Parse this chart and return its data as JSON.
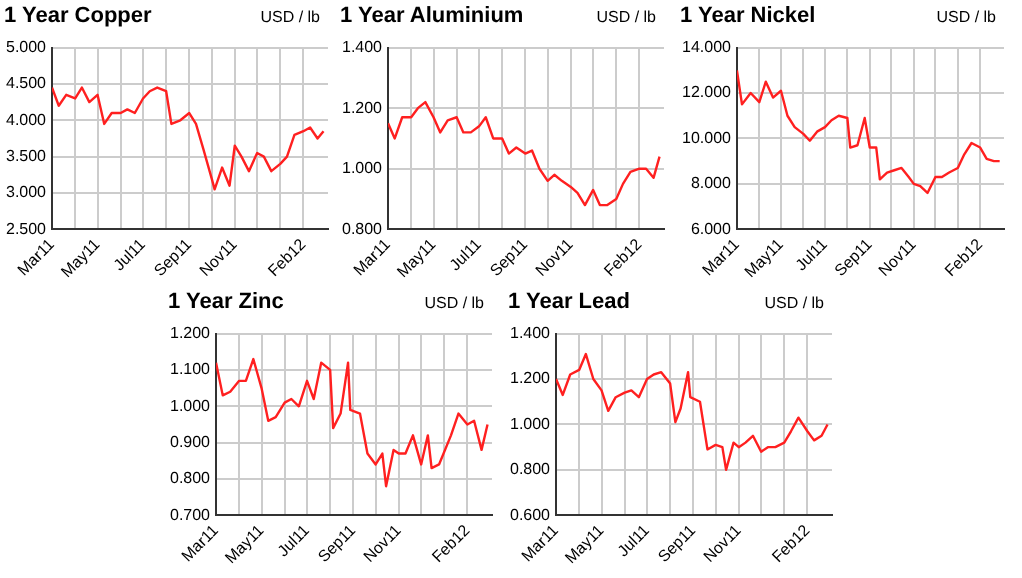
{
  "chart_data": [
    {
      "type": "line",
      "title": "1 Year Copper",
      "ylabel": "USD / lb",
      "color": "#ff2020",
      "grid": true,
      "x": [
        "2011-03-01",
        "2011-03-10",
        "2011-03-20",
        "2011-04-01",
        "2011-04-10",
        "2011-04-20",
        "2011-05-01",
        "2011-05-10",
        "2011-05-20",
        "2011-06-01",
        "2011-06-10",
        "2011-06-20",
        "2011-07-01",
        "2011-07-10",
        "2011-07-20",
        "2011-08-01",
        "2011-08-08",
        "2011-08-20",
        "2011-09-01",
        "2011-09-10",
        "2011-09-20",
        "2011-10-01",
        "2011-10-05",
        "2011-10-15",
        "2011-10-25",
        "2011-11-01",
        "2011-11-10",
        "2011-11-20",
        "2011-12-01",
        "2011-12-10",
        "2011-12-20",
        "2012-01-01",
        "2012-01-10",
        "2012-01-20",
        "2012-02-01",
        "2012-02-10",
        "2012-02-20",
        "2012-02-28"
      ],
      "values": [
        4.45,
        4.2,
        4.35,
        4.3,
        4.45,
        4.25,
        4.35,
        3.95,
        4.1,
        4.1,
        4.15,
        4.1,
        4.3,
        4.4,
        4.45,
        4.4,
        3.95,
        4.0,
        4.1,
        3.95,
        3.6,
        3.2,
        3.05,
        3.35,
        3.1,
        3.65,
        3.5,
        3.3,
        3.55,
        3.5,
        3.3,
        3.4,
        3.5,
        3.8,
        3.85,
        3.9,
        3.75,
        3.85
      ],
      "xlim": [
        "2011-03-01",
        "2012-03-05"
      ],
      "xticks": [
        {
          "value": "2011-03-01",
          "label": "Mar11"
        },
        {
          "value": "2011-04-01",
          "label": null
        },
        {
          "value": "2011-05-01",
          "label": "May11"
        },
        {
          "value": "2011-06-01",
          "label": null
        },
        {
          "value": "2011-07-01",
          "label": "Jul11"
        },
        {
          "value": "2011-08-01",
          "label": null
        },
        {
          "value": "2011-09-01",
          "label": "Sep11"
        },
        {
          "value": "2011-10-01",
          "label": null
        },
        {
          "value": "2011-11-01",
          "label": "Nov11"
        },
        {
          "value": "2011-12-01",
          "label": null
        },
        {
          "value": "2012-01-01",
          "label": null
        },
        {
          "value": "2012-02-01",
          "label": "Feb12"
        }
      ],
      "ylim": [
        2.5,
        5
      ],
      "yticks": [
        {
          "value": 2.5,
          "label": "2.500"
        },
        {
          "value": 3,
          "label": "3.000"
        },
        {
          "value": 3.5,
          "label": "3.500"
        },
        {
          "value": 4,
          "label": "4.000"
        },
        {
          "value": 4.5,
          "label": "4.500"
        },
        {
          "value": 5,
          "label": "5.000"
        }
      ]
    },
    {
      "type": "line",
      "title": "1 Year Aluminium",
      "ylabel": "USD / lb",
      "color": "#ff2020",
      "grid": true,
      "x": [
        "2011-03-01",
        "2011-03-10",
        "2011-03-20",
        "2011-04-01",
        "2011-04-10",
        "2011-04-20",
        "2011-05-01",
        "2011-05-10",
        "2011-05-20",
        "2011-06-01",
        "2011-06-10",
        "2011-06-20",
        "2011-07-01",
        "2011-07-10",
        "2011-07-20",
        "2011-08-01",
        "2011-08-10",
        "2011-08-20",
        "2011-09-01",
        "2011-09-10",
        "2011-09-20",
        "2011-10-01",
        "2011-10-10",
        "2011-10-20",
        "2011-11-01",
        "2011-11-10",
        "2011-11-20",
        "2011-12-01",
        "2011-12-10",
        "2011-12-20",
        "2012-01-01",
        "2012-01-10",
        "2012-01-20",
        "2012-02-01",
        "2012-02-10",
        "2012-02-20",
        "2012-02-28"
      ],
      "values": [
        1.15,
        1.1,
        1.17,
        1.17,
        1.2,
        1.22,
        1.17,
        1.12,
        1.16,
        1.17,
        1.12,
        1.12,
        1.14,
        1.17,
        1.1,
        1.1,
        1.05,
        1.07,
        1.05,
        1.06,
        1.0,
        0.96,
        0.98,
        0.96,
        0.94,
        0.92,
        0.88,
        0.93,
        0.88,
        0.88,
        0.9,
        0.95,
        0.99,
        1.0,
        1.0,
        0.97,
        1.04
      ],
      "xlim": [
        "2011-03-01",
        "2012-03-05"
      ],
      "xticks": [
        {
          "value": "2011-03-01",
          "label": "Mar11"
        },
        {
          "value": "2011-04-01",
          "label": null
        },
        {
          "value": "2011-05-01",
          "label": "May11"
        },
        {
          "value": "2011-06-01",
          "label": null
        },
        {
          "value": "2011-07-01",
          "label": "Jul11"
        },
        {
          "value": "2011-08-01",
          "label": null
        },
        {
          "value": "2011-09-01",
          "label": "Sep11"
        },
        {
          "value": "2011-10-01",
          "label": null
        },
        {
          "value": "2011-11-01",
          "label": "Nov11"
        },
        {
          "value": "2011-12-01",
          "label": null
        },
        {
          "value": "2012-01-01",
          "label": null
        },
        {
          "value": "2012-02-01",
          "label": "Feb12"
        }
      ],
      "ylim": [
        0.8,
        1.4
      ],
      "yticks": [
        {
          "value": 0.8,
          "label": "0.800"
        },
        {
          "value": 1,
          "label": "1.000"
        },
        {
          "value": 1.2,
          "label": "1.200"
        },
        {
          "value": 1.4,
          "label": "1.400"
        }
      ]
    },
    {
      "type": "line",
      "title": "1 Year Nickel",
      "ylabel": "USD / lb",
      "color": "#ff2020",
      "grid": true,
      "x": [
        "2011-03-01",
        "2011-03-08",
        "2011-03-20",
        "2011-04-01",
        "2011-04-10",
        "2011-04-20",
        "2011-05-01",
        "2011-05-10",
        "2011-05-20",
        "2011-06-01",
        "2011-06-10",
        "2011-06-20",
        "2011-07-01",
        "2011-07-10",
        "2011-07-20",
        "2011-08-01",
        "2011-08-05",
        "2011-08-15",
        "2011-08-25",
        "2011-09-01",
        "2011-09-10",
        "2011-09-15",
        "2011-09-25",
        "2011-10-05",
        "2011-10-15",
        "2011-10-25",
        "2011-11-01",
        "2011-11-10",
        "2011-11-20",
        "2011-12-01",
        "2011-12-10",
        "2011-12-20",
        "2012-01-01",
        "2012-01-10",
        "2012-01-20",
        "2012-02-01",
        "2012-02-10",
        "2012-02-20",
        "2012-02-28"
      ],
      "values": [
        13.0,
        11.5,
        12.0,
        11.6,
        12.5,
        11.8,
        12.1,
        11.0,
        10.5,
        10.2,
        9.9,
        10.3,
        10.5,
        10.8,
        11.0,
        10.9,
        9.6,
        9.7,
        10.9,
        9.6,
        9.6,
        8.2,
        8.5,
        8.6,
        8.7,
        8.3,
        8.0,
        7.9,
        7.6,
        8.3,
        8.3,
        8.5,
        8.7,
        9.3,
        9.8,
        9.6,
        9.1,
        9.0,
        9.0
      ],
      "xlim": [
        "2011-03-01",
        "2012-03-05"
      ],
      "xticks": [
        {
          "value": "2011-03-01",
          "label": "Mar11"
        },
        {
          "value": "2011-04-01",
          "label": null
        },
        {
          "value": "2011-05-01",
          "label": "May11"
        },
        {
          "value": "2011-06-01",
          "label": null
        },
        {
          "value": "2011-07-01",
          "label": "Jul11"
        },
        {
          "value": "2011-08-01",
          "label": null
        },
        {
          "value": "2011-09-01",
          "label": "Sep11"
        },
        {
          "value": "2011-10-01",
          "label": null
        },
        {
          "value": "2011-11-01",
          "label": "Nov11"
        },
        {
          "value": "2011-12-01",
          "label": null
        },
        {
          "value": "2012-01-01",
          "label": null
        },
        {
          "value": "2012-02-01",
          "label": "Feb12"
        }
      ],
      "ylim": [
        6,
        14
      ],
      "yticks": [
        {
          "value": 6,
          "label": "6.000"
        },
        {
          "value": 8,
          "label": "8.000"
        },
        {
          "value": 10,
          "label": "10.000"
        },
        {
          "value": 12,
          "label": "12.000"
        },
        {
          "value": 14,
          "label": "14.000"
        }
      ]
    },
    {
      "type": "line",
      "title": "1 Year Zinc",
      "ylabel": "USD / lb",
      "color": "#ff2020",
      "grid": true,
      "x": [
        "2011-03-01",
        "2011-03-10",
        "2011-03-20",
        "2011-04-01",
        "2011-04-10",
        "2011-04-20",
        "2011-05-01",
        "2011-05-10",
        "2011-05-20",
        "2011-06-01",
        "2011-06-10",
        "2011-06-20",
        "2011-07-01",
        "2011-07-10",
        "2011-07-20",
        "2011-08-01",
        "2011-08-05",
        "2011-08-15",
        "2011-08-25",
        "2011-08-28",
        "2011-09-10",
        "2011-09-20",
        "2011-10-01",
        "2011-10-10",
        "2011-10-15",
        "2011-10-25",
        "2011-11-01",
        "2011-11-10",
        "2011-11-20",
        "2011-12-01",
        "2011-12-10",
        "2011-12-15",
        "2011-12-25",
        "2012-01-10",
        "2012-01-20",
        "2012-02-01",
        "2012-02-10",
        "2012-02-20",
        "2012-02-28"
      ],
      "values": [
        1.12,
        1.03,
        1.04,
        1.07,
        1.07,
        1.13,
        1.05,
        0.96,
        0.97,
        1.01,
        1.02,
        1.0,
        1.07,
        1.02,
        1.12,
        1.1,
        0.94,
        0.98,
        1.12,
        0.99,
        0.98,
        0.87,
        0.84,
        0.87,
        0.78,
        0.88,
        0.87,
        0.87,
        0.92,
        0.84,
        0.92,
        0.83,
        0.84,
        0.92,
        0.98,
        0.95,
        0.96,
        0.88,
        0.95
      ],
      "xlim": [
        "2011-03-01",
        "2012-03-05"
      ],
      "xticks": [
        {
          "value": "2011-03-01",
          "label": "Mar11"
        },
        {
          "value": "2011-04-01",
          "label": null
        },
        {
          "value": "2011-05-01",
          "label": "May11"
        },
        {
          "value": "2011-06-01",
          "label": null
        },
        {
          "value": "2011-07-01",
          "label": "Jul11"
        },
        {
          "value": "2011-08-01",
          "label": null
        },
        {
          "value": "2011-09-01",
          "label": "Sep11"
        },
        {
          "value": "2011-10-01",
          "label": null
        },
        {
          "value": "2011-11-01",
          "label": "Nov11"
        },
        {
          "value": "2011-12-01",
          "label": null
        },
        {
          "value": "2012-01-01",
          "label": null
        },
        {
          "value": "2012-02-01",
          "label": "Feb12"
        }
      ],
      "ylim": [
        0.7,
        1.2
      ],
      "yticks": [
        {
          "value": 0.7,
          "label": "0.700"
        },
        {
          "value": 0.8,
          "label": "0.800"
        },
        {
          "value": 0.9,
          "label": "0.900"
        },
        {
          "value": 1,
          "label": "1.000"
        },
        {
          "value": 1.1,
          "label": "1.100"
        },
        {
          "value": 1.2,
          "label": "1.200"
        }
      ]
    },
    {
      "type": "line",
      "title": "1 Year Lead",
      "ylabel": "USD / lb",
      "color": "#ff2020",
      "grid": true,
      "x": [
        "2011-03-01",
        "2011-03-10",
        "2011-03-20",
        "2011-04-01",
        "2011-04-10",
        "2011-04-20",
        "2011-05-01",
        "2011-05-10",
        "2011-05-20",
        "2011-06-01",
        "2011-06-10",
        "2011-06-20",
        "2011-07-01",
        "2011-07-10",
        "2011-07-20",
        "2011-08-01",
        "2011-08-08",
        "2011-08-15",
        "2011-08-25",
        "2011-08-28",
        "2011-09-10",
        "2011-09-20",
        "2011-10-01",
        "2011-10-10",
        "2011-10-15",
        "2011-10-25",
        "2011-11-01",
        "2011-11-10",
        "2011-11-20",
        "2011-12-01",
        "2011-12-10",
        "2011-12-20",
        "2012-01-01",
        "2012-01-10",
        "2012-01-20",
        "2012-02-01",
        "2012-02-10",
        "2012-02-20",
        "2012-02-28"
      ],
      "values": [
        1.2,
        1.13,
        1.22,
        1.24,
        1.31,
        1.2,
        1.15,
        1.06,
        1.12,
        1.14,
        1.15,
        1.12,
        1.2,
        1.22,
        1.23,
        1.18,
        1.01,
        1.07,
        1.23,
        1.12,
        1.1,
        0.89,
        0.91,
        0.9,
        0.8,
        0.92,
        0.9,
        0.92,
        0.95,
        0.88,
        0.9,
        0.9,
        0.92,
        0.97,
        1.03,
        0.97,
        0.93,
        0.95,
        1.0
      ],
      "xlim": [
        "2011-03-01",
        "2012-03-05"
      ],
      "xticks": [
        {
          "value": "2011-03-01",
          "label": "Mar11"
        },
        {
          "value": "2011-04-01",
          "label": null
        },
        {
          "value": "2011-05-01",
          "label": "May11"
        },
        {
          "value": "2011-06-01",
          "label": null
        },
        {
          "value": "2011-07-01",
          "label": "Jul11"
        },
        {
          "value": "2011-08-01",
          "label": null
        },
        {
          "value": "2011-09-01",
          "label": "Sep11"
        },
        {
          "value": "2011-10-01",
          "label": null
        },
        {
          "value": "2011-11-01",
          "label": "Nov11"
        },
        {
          "value": "2011-12-01",
          "label": null
        },
        {
          "value": "2012-01-01",
          "label": null
        },
        {
          "value": "2012-02-01",
          "label": "Feb12"
        }
      ],
      "ylim": [
        0.6,
        1.4
      ],
      "yticks": [
        {
          "value": 0.6,
          "label": "0.600"
        },
        {
          "value": 0.8,
          "label": "0.800"
        },
        {
          "value": 1,
          "label": "1.000"
        },
        {
          "value": 1.2,
          "label": "1.200"
        },
        {
          "value": 1.4,
          "label": "1.400"
        }
      ]
    }
  ]
}
